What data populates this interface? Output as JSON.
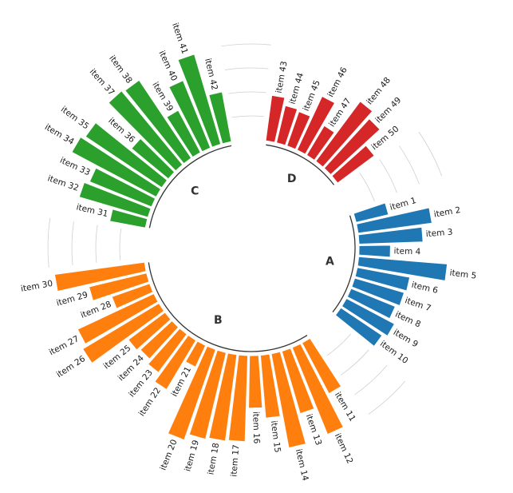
{
  "chart_data": {
    "type": "circular-bar",
    "title": "",
    "groups": [
      {
        "name": "A",
        "color": "#1f77b4"
      },
      {
        "name": "B",
        "color": "#ff7f0e"
      },
      {
        "name": "C",
        "color": "#2ca02c"
      },
      {
        "name": "D",
        "color": "#d62728"
      }
    ],
    "series": [
      {
        "name": "A",
        "items": [
          {
            "label": "item 1",
            "value": 35
          },
          {
            "label": "item 2",
            "value": 78
          },
          {
            "label": "item 3",
            "value": 67
          },
          {
            "label": "item 4",
            "value": 33
          },
          {
            "label": "item 5",
            "value": 93
          },
          {
            "label": "item 6",
            "value": 56
          },
          {
            "label": "item 7",
            "value": 54
          },
          {
            "label": "item 8",
            "value": 50
          },
          {
            "label": "item 9",
            "value": 57
          },
          {
            "label": "item 10",
            "value": 52
          }
        ]
      },
      {
        "name": "B",
        "items": [
          {
            "label": "item 11",
            "value": 60
          },
          {
            "label": "item 12",
            "value": 98
          },
          {
            "label": "item 13",
            "value": 68
          },
          {
            "label": "item 14",
            "value": 100
          },
          {
            "label": "item 15",
            "value": 66
          },
          {
            "label": "item 16",
            "value": 55
          },
          {
            "label": "item 17",
            "value": 90
          },
          {
            "label": "item 18",
            "value": 91
          },
          {
            "label": "item 19",
            "value": 93
          },
          {
            "label": "item 20",
            "value": 100
          },
          {
            "label": "item 21",
            "value": 25
          },
          {
            "label": "item 22",
            "value": 60
          },
          {
            "label": "item 23",
            "value": 50
          },
          {
            "label": "item 24",
            "value": 45
          },
          {
            "label": "item 25",
            "value": 48
          },
          {
            "label": "item 26",
            "value": 93
          },
          {
            "label": "item 27",
            "value": 88
          },
          {
            "label": "item 28",
            "value": 42
          },
          {
            "label": "item 29",
            "value": 62
          },
          {
            "label": "item 30",
            "value": 95
          }
        ]
      },
      {
        "name": "C",
        "items": [
          {
            "label": "item 31",
            "value": 38
          },
          {
            "label": "item 32",
            "value": 75
          },
          {
            "label": "item 33",
            "value": 70
          },
          {
            "label": "item 34",
            "value": 100
          },
          {
            "label": "item 35",
            "value": 96
          },
          {
            "label": "item 36",
            "value": 50
          },
          {
            "label": "item 37",
            "value": 100
          },
          {
            "label": "item 38",
            "value": 98
          },
          {
            "label": "item 39",
            "value": 50
          },
          {
            "label": "item 40",
            "value": 76
          },
          {
            "label": "item 41",
            "value": 98
          },
          {
            "label": "item 42",
            "value": 53
          }
        ]
      },
      {
        "name": "D",
        "items": [
          {
            "label": "item 43",
            "value": 48
          },
          {
            "label": "item 44",
            "value": 40
          },
          {
            "label": "item 45",
            "value": 38
          },
          {
            "label": "item 46",
            "value": 62
          },
          {
            "label": "item 47",
            "value": 36
          },
          {
            "label": "item 48",
            "value": 78
          },
          {
            "label": "item 49",
            "value": 70
          },
          {
            "label": "item 50",
            "value": 48
          }
        ]
      }
    ],
    "gap_slots_between_groups": 3,
    "ylim": [
      0,
      100
    ],
    "grid": true,
    "legend": "none"
  }
}
